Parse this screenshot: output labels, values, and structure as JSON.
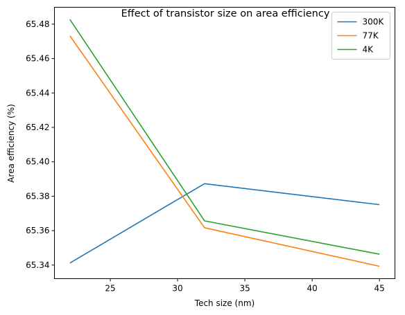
{
  "chart_data": {
    "type": "line",
    "title": "Effect of transistor size on area efficiency",
    "xlabel": "Tech size (nm)",
    "ylabel": "Area efficiency (%)",
    "x": [
      22,
      32,
      45
    ],
    "xlim": [
      20.85,
      46.15
    ],
    "ylim": [
      65.3321,
      65.4898
    ],
    "xticks": [
      25,
      30,
      35,
      40,
      45
    ],
    "yticks": [
      65.34,
      65.36,
      65.38,
      65.4,
      65.42,
      65.44,
      65.46,
      65.48
    ],
    "xtick_labels": [
      "25",
      "30",
      "35",
      "40",
      "45"
    ],
    "ytick_labels": [
      "65.34",
      "65.36",
      "65.38",
      "65.40",
      "65.42",
      "65.44",
      "65.46",
      "65.48"
    ],
    "grid": false,
    "legend_position": "top-right",
    "series": [
      {
        "name": "300K",
        "color": "#1f77b4",
        "values": [
          65.3412,
          65.3873,
          65.3751
        ]
      },
      {
        "name": "77K",
        "color": "#ff7f0e",
        "values": [
          65.4732,
          65.3617,
          65.3393
        ]
      },
      {
        "name": "4K",
        "color": "#2ca02c",
        "values": [
          65.4827,
          65.3657,
          65.3463
        ]
      }
    ]
  }
}
